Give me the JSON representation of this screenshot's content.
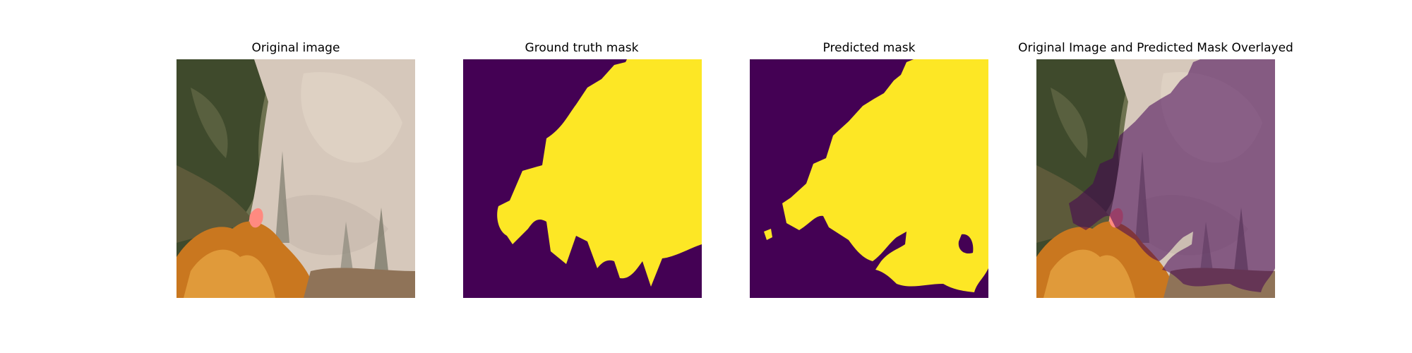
{
  "panels": [
    {
      "title": "Original image"
    },
    {
      "title": "Ground truth mask"
    },
    {
      "title": "Predicted mask"
    },
    {
      "title": "Original Image and Predicted Mask Overlayed"
    }
  ],
  "colors": {
    "mask_background": "#440154",
    "mask_foreground": "#fde725",
    "smoke": "#d6c8bb",
    "forest": "#4f5a36",
    "autumn_foliage": "#d98a2b",
    "flame": "#ff8a80"
  }
}
